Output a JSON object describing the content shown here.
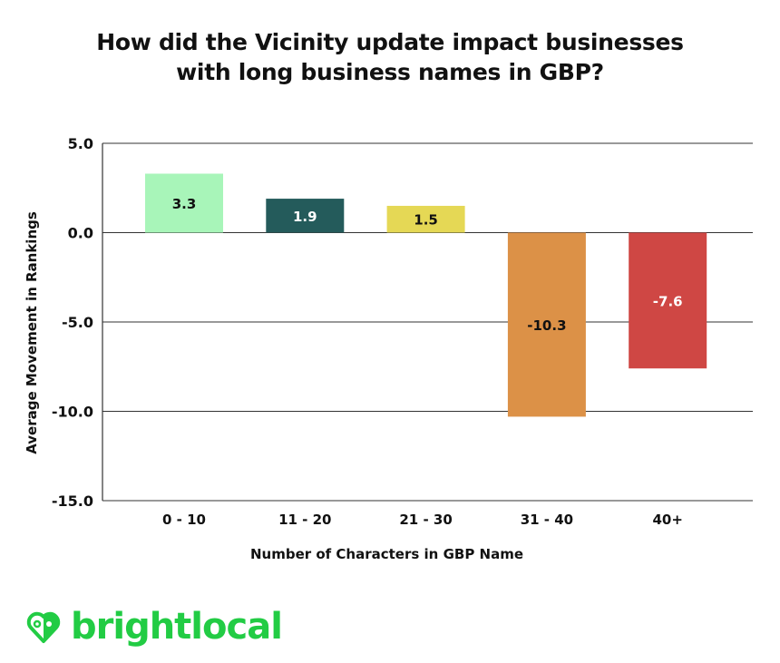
{
  "chart_data": {
    "type": "bar",
    "title": "How did the Vicinity update impact businesses with long business names in GBP?",
    "title_lines": [
      "How did the Vicinity update impact businesses",
      "with long business names in GBP?"
    ],
    "xlabel": "Number of Characters in GBP Name",
    "ylabel": "Average Movement in Rankings",
    "categories": [
      "0 - 10",
      "11 - 20",
      "21 - 30",
      "31 - 40",
      "40+"
    ],
    "values": [
      3.3,
      1.9,
      1.5,
      -10.3,
      -7.6
    ],
    "data_labels": [
      "3.3",
      "1.9",
      "1.5",
      "-10.3",
      "-7.6"
    ],
    "colors": [
      "#a8f5b9",
      "#245b5b",
      "#e5d855",
      "#dc9147",
      "#cf4744"
    ],
    "label_colors": [
      "#111111",
      "#ffffff",
      "#111111",
      "#111111",
      "#ffffff"
    ],
    "ylim": [
      -15,
      5
    ],
    "yticks": [
      5,
      0,
      -5,
      -10,
      -15
    ],
    "ytick_labels": [
      "5.0",
      "0.0",
      "-5.0",
      "-10.0",
      "-15.0"
    ],
    "grid": true,
    "legend": "none"
  },
  "brand": {
    "name": "brightlocal",
    "color": "#22cc44"
  }
}
